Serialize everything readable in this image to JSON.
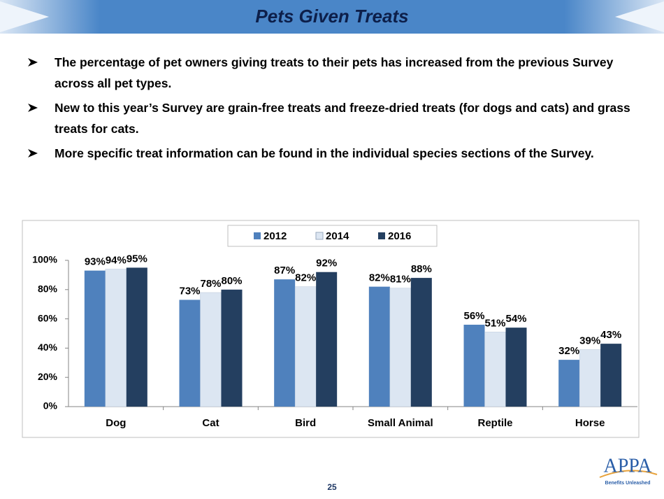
{
  "title": "Pets Given Treats",
  "bullets": [
    "The percentage of pet owners giving treats to their pets has increased from the previous Survey across all pet types.",
    "New to this year’s Survey are grain-free treats and freeze-dried treats (for dogs and cats) and grass treats for cats.",
    "More specific treat information can be found in the individual species sections of the Survey."
  ],
  "chart_data": {
    "type": "bar",
    "categories": [
      "Dog",
      "Cat",
      "Bird",
      "Small Animal",
      "Reptile",
      "Horse"
    ],
    "series": [
      {
        "name": "2012",
        "color": "#4f81bd",
        "values": [
          93,
          73,
          87,
          82,
          56,
          32
        ],
        "value_labels": [
          "93%",
          "73%",
          "87%",
          "82%",
          "56%",
          "32%"
        ]
      },
      {
        "name": "2014",
        "color": "#dce6f2",
        "values": [
          94,
          78,
          82,
          81,
          51,
          39
        ],
        "value_labels": [
          "94%",
          "78%",
          "82%",
          "81%",
          "51%",
          "39%"
        ]
      },
      {
        "name": "2016",
        "color": "#243f60",
        "values": [
          95,
          80,
          92,
          88,
          54,
          43
        ],
        "value_labels": [
          "95%",
          "80%",
          "92%",
          "88%",
          "54%",
          "43%"
        ]
      }
    ],
    "ylim": [
      0,
      100
    ],
    "yticks": [
      {
        "value": 0,
        "label": "0%"
      },
      {
        "value": 20,
        "label": "20%"
      },
      {
        "value": 40,
        "label": "40%"
      },
      {
        "value": 60,
        "label": "60%"
      },
      {
        "value": 80,
        "label": "80%"
      },
      {
        "value": 100,
        "label": "100%"
      }
    ],
    "grid": false,
    "legend": "top"
  },
  "page_number": 25,
  "logo": {
    "name": "APPA",
    "tagline": "Benefits Unleashed"
  }
}
